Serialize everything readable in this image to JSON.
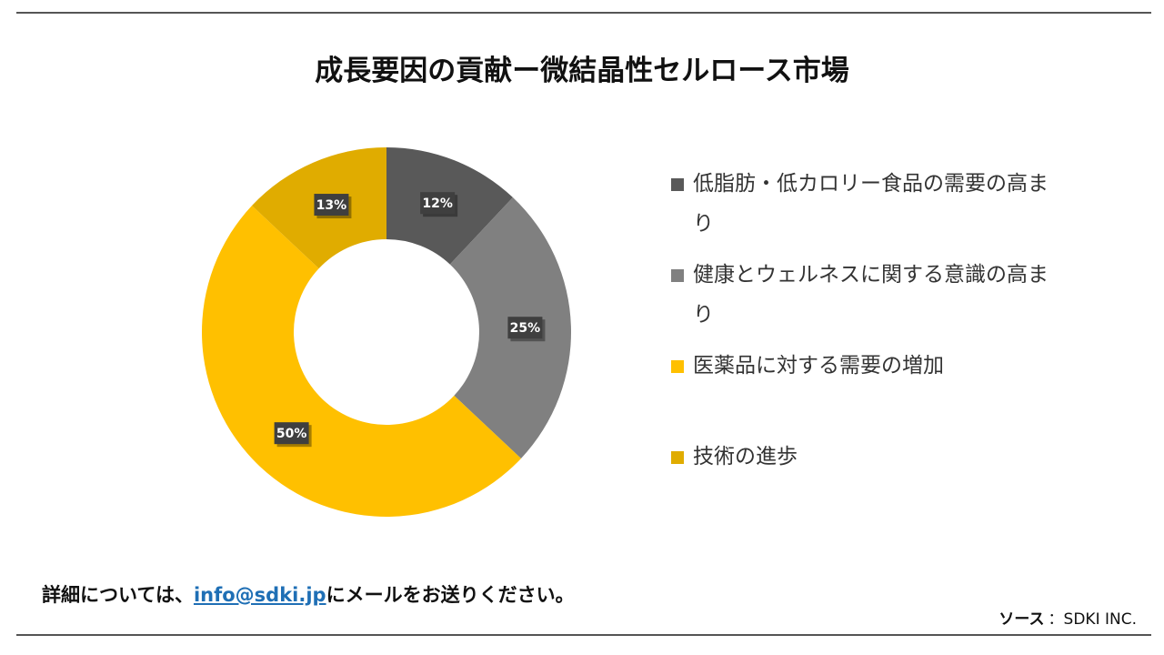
{
  "chart_data": {
    "type": "donut",
    "title": "成長要因の貢献ー微結晶性セルロース市場",
    "categories": [
      "低脂肪・低カロリー食品の需要の高まり",
      "健康とウェルネスに関する意識の高まり",
      "医薬品に対する需要の増加",
      "技術の進歩"
    ],
    "values": [
      12,
      25,
      50,
      13
    ],
    "value_labels": [
      "12%",
      "25%",
      "50%",
      "13%"
    ],
    "colors": [
      "#595959",
      "#808080",
      "#ffc000",
      "#e0ac00"
    ],
    "legend": "right"
  },
  "footer": {
    "prefix": "詳細については、",
    "email": "info@sdki.jp",
    "suffix": "にメールをお送りください。"
  },
  "source": {
    "label": "ソース",
    "value": "：SDKI INC."
  }
}
